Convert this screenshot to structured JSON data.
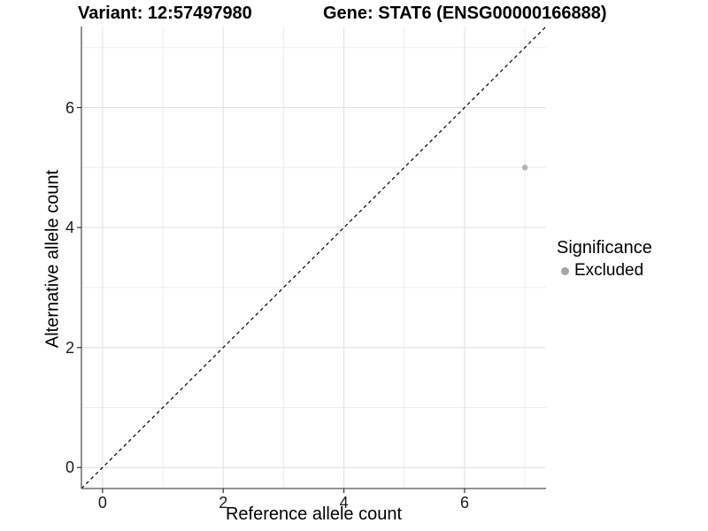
{
  "chart_data": {
    "type": "scatter",
    "title_left": "Variant: 12:57497980",
    "title_right": "Gene: STAT6 (ENSG00000166888)",
    "xlabel": "Reference allele count",
    "ylabel": "Alternative allele count",
    "xlim": [
      -0.35,
      7.35
    ],
    "ylim": [
      -0.35,
      7.35
    ],
    "xticks": [
      0,
      2,
      4,
      6
    ],
    "yticks": [
      0,
      2,
      4,
      6
    ],
    "minor_gridlines_x": [
      1,
      3,
      5,
      7
    ],
    "minor_gridlines_y": [
      1,
      3,
      5,
      7
    ],
    "grid": true,
    "identity_line": {
      "equation": "y = x",
      "style": "dashed",
      "color": "#000000"
    },
    "series": [
      {
        "name": "Excluded",
        "color": "#b3b3b3",
        "points": [
          {
            "x": 7,
            "y": 5
          }
        ]
      }
    ],
    "legend": {
      "title": "Significance",
      "position": "right",
      "items": [
        {
          "label": "Excluded",
          "color": "#a6a6a6"
        }
      ]
    },
    "colors": {
      "background": "#ffffff",
      "grid_major": "#e3e3e3",
      "grid_minor": "#ededed",
      "axis_line": "#555555",
      "tick_mark": "#333333",
      "tick_text": "#1a1a1a"
    }
  }
}
